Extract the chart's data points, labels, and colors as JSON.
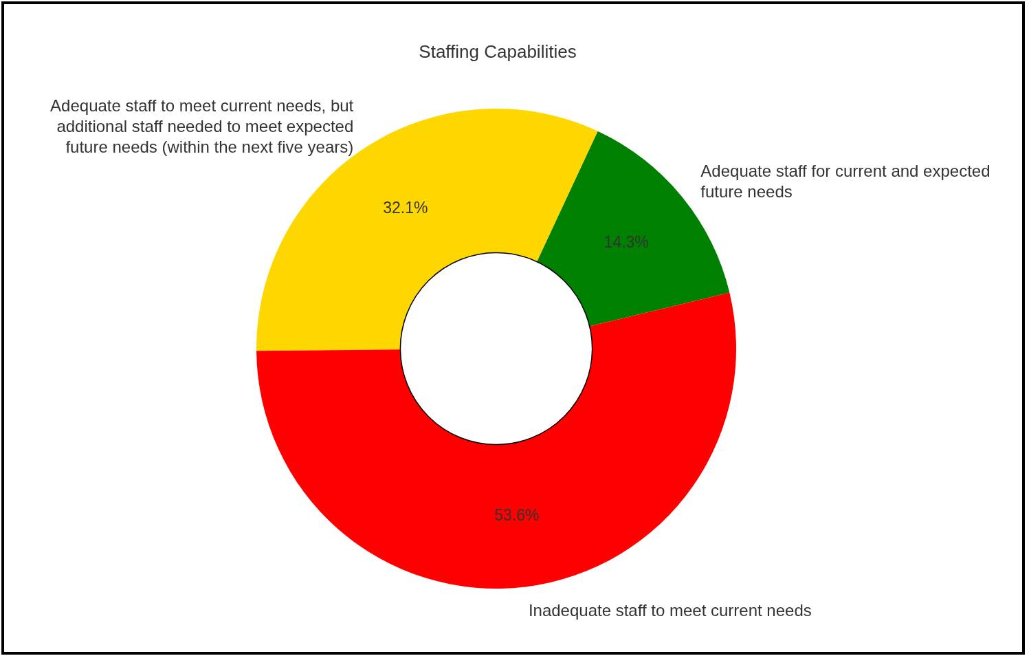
{
  "chart_data": {
    "type": "donut",
    "title": "Staffing Capabilities",
    "categories": [
      "Adequate staff for current and expected future needs",
      "Adequate staff to meet current needs, but additional staff needed to meet expected future needs (within the next five years)",
      "Inadequate staff to meet current needs"
    ],
    "values": [
      14.3,
      32.1,
      53.6
    ],
    "colors": [
      "#008000",
      "#ffd700",
      "#ff0000"
    ],
    "value_labels": [
      "14.3%",
      "32.1%",
      "53.6%"
    ]
  }
}
